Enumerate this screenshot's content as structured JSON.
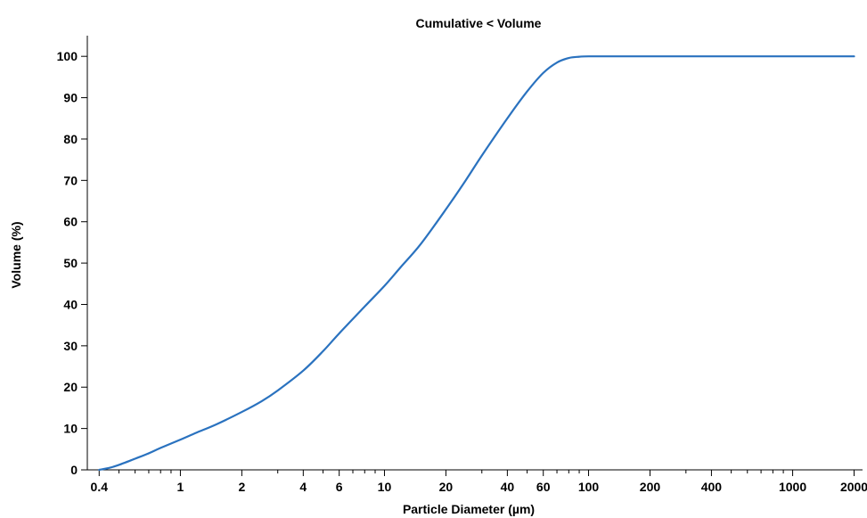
{
  "chart_data": {
    "type": "line",
    "title": "Cumulative < Volume",
    "xlabel": "Particle Diameter (µm)",
    "ylabel": "Volume (%)",
    "x_scale": "log",
    "xlim": [
      0.35,
      2200
    ],
    "ylim": [
      0,
      105
    ],
    "grid": false,
    "legend": "none",
    "x_ticks": [
      {
        "value": 0.4,
        "label": "0.4"
      },
      {
        "value": 1,
        "label": "1"
      },
      {
        "value": 2,
        "label": "2"
      },
      {
        "value": 4,
        "label": "4"
      },
      {
        "value": 6,
        "label": "6"
      },
      {
        "value": 10,
        "label": "10"
      },
      {
        "value": 20,
        "label": "20"
      },
      {
        "value": 40,
        "label": "40"
      },
      {
        "value": 60,
        "label": "60"
      },
      {
        "value": 100,
        "label": "100"
      },
      {
        "value": 200,
        "label": "200"
      },
      {
        "value": 400,
        "label": "400"
      },
      {
        "value": 1000,
        "label": "1000"
      },
      {
        "value": 2000,
        "label": "2000"
      }
    ],
    "x_minor_ticks": [
      0.5,
      0.6,
      0.7,
      0.8,
      0.9,
      3,
      5,
      7,
      8,
      9,
      30,
      50,
      70,
      80,
      90,
      300,
      500,
      600,
      700,
      800,
      900
    ],
    "y_ticks": [
      0,
      10,
      20,
      30,
      40,
      50,
      60,
      70,
      80,
      90,
      100
    ],
    "series": [
      {
        "color": "#2a72bf",
        "x": [
          0.4,
          0.45,
          0.5,
          0.6,
          0.7,
          0.8,
          1,
          1.2,
          1.5,
          2,
          2.5,
          3,
          4,
          5,
          6,
          8,
          10,
          12,
          15,
          20,
          25,
          30,
          40,
          50,
          60,
          70,
          80,
          90,
          100,
          150,
          200,
          500,
          1000,
          2000
        ],
        "y": [
          0,
          0.5,
          1.2,
          2.7,
          4.0,
          5.3,
          7.3,
          9.0,
          11.0,
          14.0,
          16.6,
          19.2,
          24.0,
          28.7,
          33.0,
          39.5,
          44.5,
          49.0,
          54.5,
          63.0,
          70.0,
          76.0,
          85.0,
          91.5,
          96.0,
          98.5,
          99.6,
          99.9,
          100,
          100,
          100,
          100,
          100,
          100
        ]
      }
    ]
  }
}
